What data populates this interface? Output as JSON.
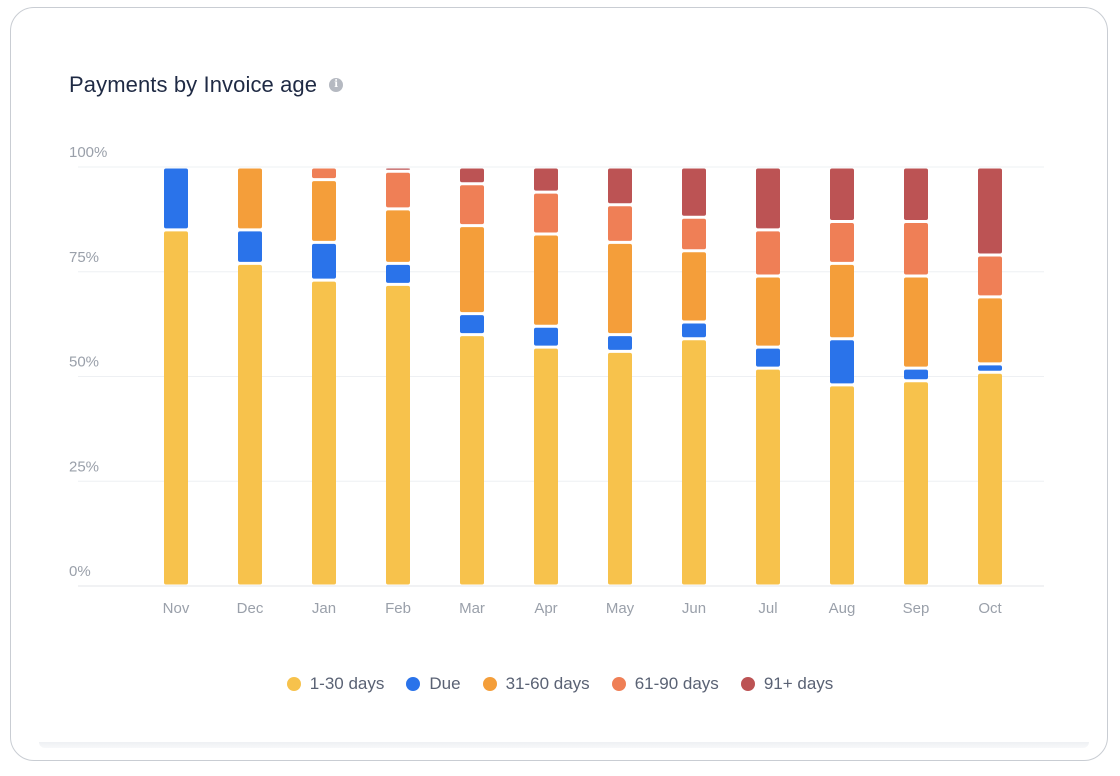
{
  "card": {
    "title": "Payments by Invoice age",
    "info_icon": "info-icon"
  },
  "chart_data": {
    "type": "bar",
    "stacked": true,
    "title": "Payments by Invoice age",
    "categories": [
      "Nov",
      "Dec",
      "Jan",
      "Feb",
      "Mar",
      "Apr",
      "May",
      "Jun",
      "Jul",
      "Aug",
      "Sep",
      "Oct"
    ],
    "ylim": [
      0,
      100
    ],
    "yticks": [
      "0%",
      "25%",
      "50%",
      "75%",
      "100%"
    ],
    "grid": true,
    "legend_position": "bottom",
    "series": [
      {
        "name": "1-30 days",
        "color": "#f7c24c",
        "values": [
          85,
          77,
          73,
          72,
          60,
          57,
          56,
          59,
          52,
          48,
          49,
          51
        ]
      },
      {
        "name": "Due",
        "color": "#2a73ea",
        "values": [
          15,
          8,
          9,
          5,
          5,
          5,
          4,
          4,
          5,
          11,
          3,
          2
        ]
      },
      {
        "name": "31-60 days",
        "color": "#f49e3a",
        "values": [
          0,
          15,
          15,
          13,
          21,
          22,
          22,
          17,
          17,
          18,
          22,
          16
        ]
      },
      {
        "name": "61-90 days",
        "color": "#ef7f56",
        "values": [
          0,
          0,
          3,
          9,
          10,
          10,
          9,
          8,
          11,
          10,
          13,
          10
        ]
      },
      {
        "name": "91+ days",
        "color": "#bc5354",
        "values": [
          0,
          0,
          0,
          1,
          4,
          6,
          9,
          12,
          15,
          13,
          13,
          21
        ]
      }
    ]
  }
}
